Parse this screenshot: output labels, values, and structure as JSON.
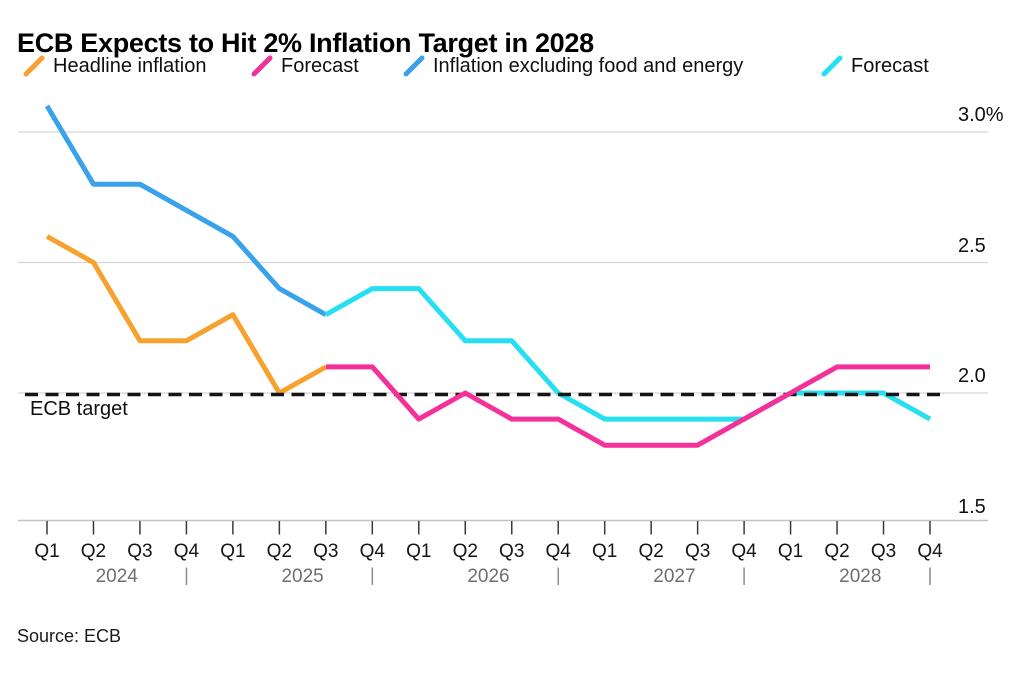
{
  "title": "ECB Expects to Hit 2% Inflation Target in 2028",
  "source": "Source: ECB",
  "target_label": "ECB target",
  "legend": [
    {
      "label": "Headline inflation",
      "color": "#F7A22E"
    },
    {
      "label": "Forecast",
      "color": "#F4309B"
    },
    {
      "label": "Inflation excluding food and energy",
      "color": "#39A2EA"
    },
    {
      "label": "Forecast",
      "color": "#26DFF0"
    }
  ],
  "y_axis": {
    "ticks": [
      {
        "label": "3.0%",
        "value": 3.0,
        "grid": true
      },
      {
        "label": "2.5",
        "value": 2.5,
        "grid": true
      },
      {
        "label": "2.0",
        "value": 2.0,
        "grid": true
      },
      {
        "label": "1.5",
        "value": 1.5,
        "grid": false
      }
    ]
  },
  "x_axis": {
    "quarters": [
      "Q1",
      "Q2",
      "Q3",
      "Q4",
      "Q1",
      "Q2",
      "Q3",
      "Q4",
      "Q1",
      "Q2",
      "Q3",
      "Q4",
      "Q1",
      "Q2",
      "Q3",
      "Q4",
      "Q1",
      "Q2",
      "Q3",
      "Q4"
    ],
    "years": [
      {
        "label": "2024",
        "start_index": 0
      },
      {
        "label": "2025",
        "start_index": 4
      },
      {
        "label": "2026",
        "start_index": 8
      },
      {
        "label": "2027",
        "start_index": 12
      },
      {
        "label": "2028",
        "start_index": 16
      }
    ],
    "separator": "|"
  },
  "chart_data": {
    "type": "line",
    "x": [
      "Q1 2024",
      "Q2 2024",
      "Q3 2024",
      "Q4 2024",
      "Q1 2025",
      "Q2 2025",
      "Q3 2025",
      "Q4 2025",
      "Q1 2026",
      "Q2 2026",
      "Q3 2026",
      "Q4 2026",
      "Q1 2027",
      "Q2 2027",
      "Q3 2027",
      "Q4 2027",
      "Q1 2028",
      "Q2 2028",
      "Q3 2028",
      "Q4 2028"
    ],
    "ylim": [
      1.5,
      3.1
    ],
    "grid": true,
    "legend_position": "top",
    "target": {
      "label": "ECB target",
      "value": 2.0
    },
    "series": [
      {
        "name": "Headline inflation",
        "color": "#F7A22E",
        "start_index": 0,
        "values": [
          2.6,
          2.5,
          2.2,
          2.2,
          2.3,
          2.0,
          2.1
        ]
      },
      {
        "name": "Forecast",
        "color": "#F4309B",
        "start_index": 6,
        "values": [
          2.1,
          2.1,
          1.9,
          2.0,
          1.9,
          1.9,
          1.8,
          1.8,
          1.8,
          1.9,
          2.0,
          2.1,
          2.1,
          2.1
        ]
      },
      {
        "name": "Inflation excluding food and energy",
        "color": "#39A2EA",
        "start_index": 0,
        "values": [
          3.1,
          2.8,
          2.8,
          2.7,
          2.6,
          2.4,
          2.3
        ]
      },
      {
        "name": "Forecast",
        "color": "#26DFF0",
        "start_index": 6,
        "values": [
          2.3,
          2.4,
          2.4,
          2.2,
          2.2,
          2.0,
          1.9,
          1.9,
          1.9,
          1.9,
          2.0,
          2.0,
          2.0,
          1.9
        ]
      }
    ]
  }
}
